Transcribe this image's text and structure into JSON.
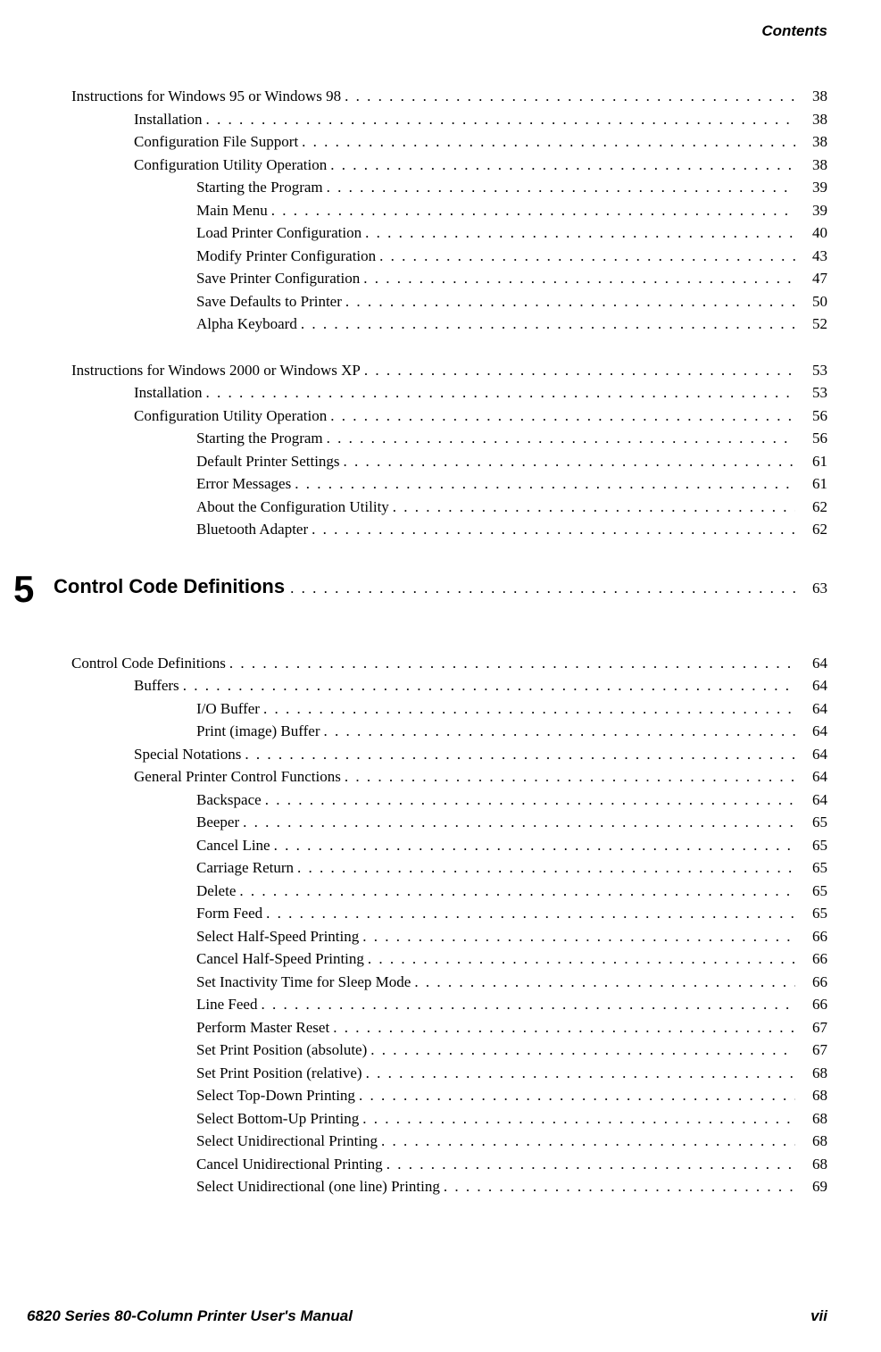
{
  "header": "Contents",
  "leader_dots": " . . . . . . . . . . . . . . . . . . . . . . . . . . . . . . . . . . . . . . . . . . . . . . . . . . . . . . . . . . . . . . . . . . . . . . . . . . . . . . . . . . . . . . . . . . . . . . . . . . . . . . . . . . . . . . . . . . . . . . . . . . . . . . . . . . . . . . . . . . . . . . . . . .",
  "sections": [
    {
      "type": "group",
      "items": [
        {
          "level": 0,
          "label": "Instructions for Windows 95 or Windows 98",
          "page": "38"
        },
        {
          "level": 1,
          "label": "Installation",
          "page": "38"
        },
        {
          "level": 1,
          "label": "Configuration File Support",
          "page": "38"
        },
        {
          "level": 1,
          "label": "Configuration Utility Operation",
          "page": "38"
        },
        {
          "level": 2,
          "label": "Starting the Program",
          "page": "39"
        },
        {
          "level": 2,
          "label": "Main Menu",
          "page": "39"
        },
        {
          "level": 2,
          "label": "Load Printer Configuration",
          "page": "40"
        },
        {
          "level": 2,
          "label": "Modify Printer Configuration",
          "page": "43"
        },
        {
          "level": 2,
          "label": "Save Printer Configuration",
          "page": "47"
        },
        {
          "level": 2,
          "label": "Save Defaults to Printer",
          "page": "50"
        },
        {
          "level": 2,
          "label": "Alpha Keyboard",
          "page": "52"
        }
      ]
    },
    {
      "type": "group",
      "items": [
        {
          "level": 0,
          "label": "Instructions for Windows 2000 or Windows XP",
          "page": "53"
        },
        {
          "level": 1,
          "label": "Installation",
          "page": "53"
        },
        {
          "level": 1,
          "label": "Configuration Utility Operation",
          "page": "56"
        },
        {
          "level": 2,
          "label": "Starting the Program",
          "page": "56"
        },
        {
          "level": 2,
          "label": "Default Printer Settings",
          "page": "61"
        },
        {
          "level": 2,
          "label": "Error Messages",
          "page": "61"
        },
        {
          "level": 2,
          "label": "About the Configuration Utility",
          "page": "62"
        },
        {
          "level": 2,
          "label": "Bluetooth Adapter",
          "page": "62"
        }
      ]
    },
    {
      "type": "chapter",
      "number": "5",
      "title": "Control Code Definitions",
      "page": "63"
    },
    {
      "type": "group",
      "items": [
        {
          "level": 0,
          "label": "Control Code Definitions",
          "page": "64"
        },
        {
          "level": 1,
          "label": "Buffers",
          "page": "64"
        },
        {
          "level": 2,
          "label": "I/O Buffer",
          "page": "64"
        },
        {
          "level": 2,
          "label": "Print (image) Buffer",
          "page": "64"
        },
        {
          "level": 1,
          "label": "Special Notations",
          "page": "64"
        },
        {
          "level": 1,
          "label": "General Printer Control Functions",
          "page": "64"
        },
        {
          "level": 2,
          "label": "Backspace",
          "page": "64"
        },
        {
          "level": 2,
          "label": "Beeper",
          "page": "65"
        },
        {
          "level": 2,
          "label": "Cancel Line",
          "page": "65"
        },
        {
          "level": 2,
          "label": "Carriage Return",
          "page": "65"
        },
        {
          "level": 2,
          "label": "Delete",
          "page": "65"
        },
        {
          "level": 2,
          "label": "Form Feed",
          "page": "65"
        },
        {
          "level": 2,
          "label": "Select Half-Speed Printing",
          "page": "66"
        },
        {
          "level": 2,
          "label": "Cancel Half-Speed Printing",
          "page": "66"
        },
        {
          "level": 2,
          "label": "Set Inactivity Time for Sleep Mode",
          "page": "66"
        },
        {
          "level": 2,
          "label": "Line Feed",
          "page": "66"
        },
        {
          "level": 2,
          "label": "Perform Master Reset",
          "page": "67"
        },
        {
          "level": 2,
          "label": "Set Print Position (absolute)",
          "page": "67"
        },
        {
          "level": 2,
          "label": "Set Print Position (relative)",
          "page": "68"
        },
        {
          "level": 2,
          "label": "Select Top-Down Printing",
          "page": "68"
        },
        {
          "level": 2,
          "label": "Select Bottom-Up Printing",
          "page": "68"
        },
        {
          "level": 2,
          "label": "Select Unidirectional Printing",
          "page": "68"
        },
        {
          "level": 2,
          "label": "Cancel Unidirectional Printing",
          "page": "68"
        },
        {
          "level": 2,
          "label": "Select Unidirectional (one line) Printing",
          "page": "69"
        }
      ]
    }
  ],
  "footer": {
    "left": "6820 Series 80-Column Printer User's Manual",
    "right": "vii"
  }
}
